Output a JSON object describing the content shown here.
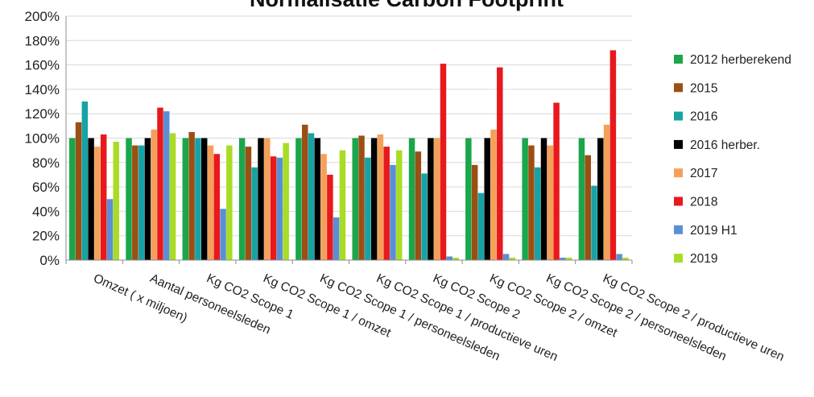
{
  "chart_data": {
    "type": "bar",
    "title": "Normalisatie Carbon Footprint",
    "xlabel": "",
    "ylabel": "",
    "ylim": [
      0,
      200
    ],
    "y_ticks": [
      "0%",
      "20%",
      "40%",
      "60%",
      "80%",
      "100%",
      "120%",
      "140%",
      "160%",
      "180%",
      "200%"
    ],
    "grid": "horizontal",
    "legend_position": "right",
    "categories": [
      "Omzet ( x miljoen)",
      "Aantal personeelsleden",
      "Kg CO2 Scope 1",
      "Kg CO2 Scope 1 / omzet",
      "Kg CO2 Scope 1 / personeelsleden",
      "Kg CO2 Scope 1 / productieve uren",
      "Kg CO2 Scope 2",
      "Kg CO2 Scope 2 / omzet",
      "Kg CO2 Scope 2 / personeelsleden",
      "Kg CO2 Scope 2 / productieve uren"
    ],
    "series": [
      {
        "name": "2012 herberekend",
        "color": "#1aa64a",
        "values": [
          100,
          100,
          100,
          100,
          100,
          100,
          100,
          100,
          100,
          100
        ]
      },
      {
        "name": "2015",
        "color": "#9b4f14",
        "values": [
          113,
          94,
          105,
          93,
          111,
          102,
          89,
          78,
          94,
          86
        ]
      },
      {
        "name": "2016",
        "color": "#17a3a5",
        "values": [
          130,
          94,
          100,
          76,
          104,
          84,
          71,
          55,
          76,
          61
        ]
      },
      {
        "name": "2016 herber.",
        "color": "#000000",
        "values": [
          100,
          100,
          100,
          100,
          100,
          100,
          100,
          100,
          100,
          100
        ]
      },
      {
        "name": "2017",
        "color": "#f5a05a",
        "values": [
          93,
          107,
          94,
          100,
          87,
          103,
          100,
          107,
          94,
          111
        ]
      },
      {
        "name": "2018",
        "color": "#e8191c",
        "values": [
          103,
          125,
          87,
          85,
          70,
          93,
          161,
          158,
          129,
          172
        ]
      },
      {
        "name": "2019 H1",
        "color": "#5b8fd4",
        "values": [
          50,
          122,
          42,
          84,
          35,
          78,
          3,
          5,
          2,
          5
        ]
      },
      {
        "name": "2019",
        "color": "#a9dc25",
        "values": [
          97,
          104,
          94,
          96,
          90,
          90,
          2,
          2,
          2,
          2
        ]
      }
    ]
  }
}
